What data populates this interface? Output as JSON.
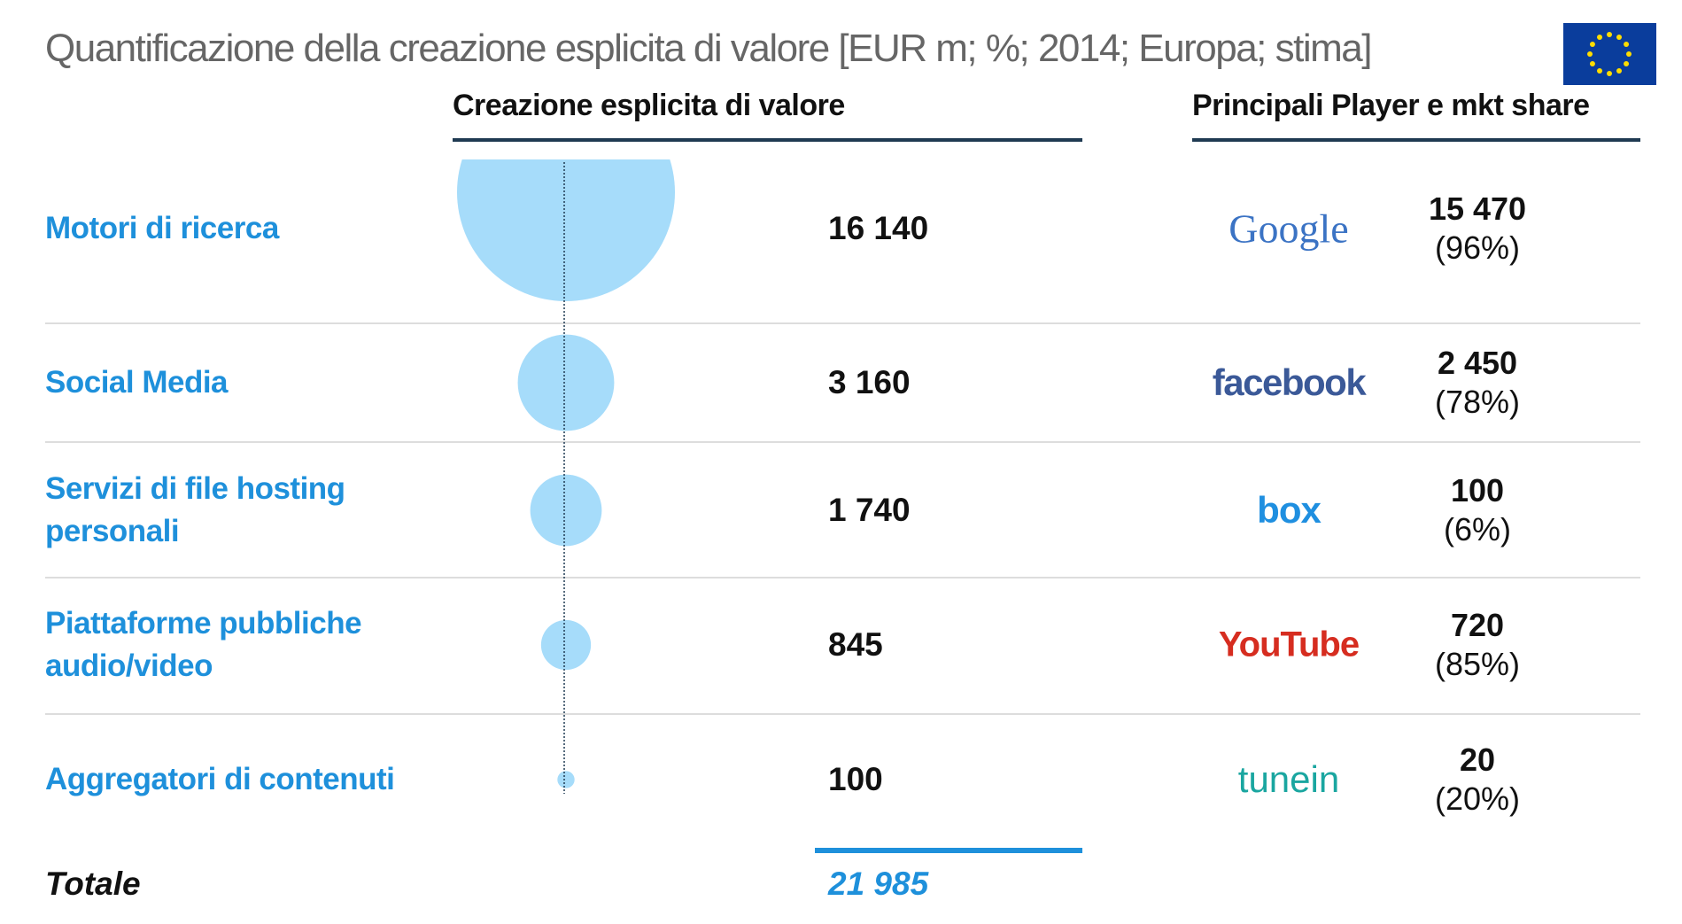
{
  "chart_data": {
    "type": "bubble",
    "title": "Quantificazione della creazione esplicita di valore [EUR m; %; 2014; Europa; stima]",
    "value_header": "Creazione esplicita di valore",
    "player_header": "Principali Player e mkt share",
    "categories": [
      "Motori di ricerca",
      "Social Media",
      "Servizi di file hosting personali",
      "Piattaforme pubbliche audio/video",
      "Aggregatori di contenuti"
    ],
    "values": [
      16140,
      3160,
      1740,
      845,
      100
    ],
    "value_labels": [
      "16 140",
      "3 160",
      "1 740",
      "845",
      "100"
    ],
    "color": "#a6dcfa",
    "players": [
      "Google",
      "facebook",
      "box",
      "YouTube",
      "tunein"
    ],
    "player_values": [
      "15 470",
      "2 450",
      "100",
      "720",
      "20"
    ],
    "player_shares": [
      "(96%)",
      "(78%)",
      "(6%)",
      "(85%)",
      "(20%)"
    ],
    "total_title": "Totale",
    "total": "21 985"
  }
}
